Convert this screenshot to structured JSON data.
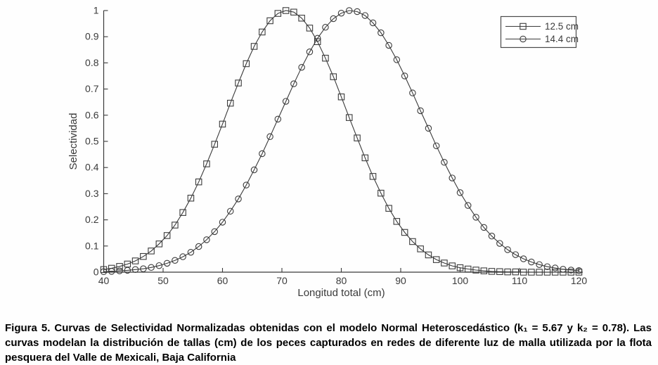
{
  "figure": {
    "caption": "Figura 5. Curvas de Selectividad Normalizadas obtenidas con el modelo Normal Heteroscedástico (k₁ = 5.67 y k₂ = 0.78). Las curvas modelan la distribución de tallas (cm) de los peces capturados en redes de diferente luz de malla utilizada por la flota pesquera del Valle de Mexicali, Baja California"
  },
  "colors": {
    "curve": "#3a3a3a",
    "axis": "#3a3a3a",
    "tick_text": "#3a3a3a",
    "legend_border": "#4a4a4a",
    "background": "#fefefe"
  },
  "chart_data": {
    "type": "line",
    "title": "",
    "xlabel": "Longitud total (cm)",
    "ylabel": "Selectividad",
    "xlim": [
      40,
      120
    ],
    "ylim": [
      0,
      1
    ],
    "x_ticks": [
      40,
      50,
      60,
      70,
      80,
      90,
      100,
      110,
      120
    ],
    "y_ticks": [
      0,
      0.1,
      0.2,
      0.3,
      0.4,
      0.5,
      0.6,
      0.7,
      0.8,
      0.9,
      1
    ],
    "grid": false,
    "legend_position": "top-right",
    "x": [
      40,
      41.33,
      42.67,
      44,
      45.33,
      46.67,
      48,
      49.33,
      50.67,
      52,
      53.33,
      54.67,
      56,
      57.33,
      58.67,
      60,
      61.33,
      62.67,
      64,
      65.33,
      66.67,
      68,
      69.33,
      70.67,
      72,
      73.33,
      74.67,
      76,
      77.33,
      78.67,
      80,
      81.33,
      82.67,
      84,
      85.33,
      86.67,
      88,
      89.33,
      90.67,
      92,
      93.33,
      94.67,
      96,
      97.33,
      98.67,
      100,
      101.33,
      102.67,
      104,
      105.33,
      106.67,
      108,
      109.33,
      110.67,
      112,
      113.33,
      114.67,
      116,
      117.33,
      118.67,
      120
    ],
    "series": [
      {
        "name": "12.5 cm",
        "marker": "square",
        "peak_at": 70.9,
        "values": [
          0.01,
          0.015,
          0.022,
          0.031,
          0.043,
          0.06,
          0.081,
          0.108,
          0.14,
          0.18,
          0.228,
          0.283,
          0.345,
          0.414,
          0.489,
          0.566,
          0.646,
          0.723,
          0.797,
          0.863,
          0.918,
          0.961,
          0.989,
          1.0,
          0.994,
          0.971,
          0.933,
          0.881,
          0.818,
          0.747,
          0.67,
          0.591,
          0.513,
          0.437,
          0.366,
          0.302,
          0.244,
          0.194,
          0.152,
          0.117,
          0.089,
          0.066,
          0.048,
          0.035,
          0.024,
          0.017,
          0.012,
          0.008,
          0.005,
          0.003,
          0.002,
          0.001,
          0.001,
          0.0,
          0.0,
          0.0,
          0.0,
          0.0,
          0.0,
          0.0,
          0.0
        ]
      },
      {
        "name": "14.4 cm",
        "marker": "circle",
        "peak_at": 81.6,
        "values": [
          0.002,
          0.003,
          0.005,
          0.007,
          0.01,
          0.013,
          0.018,
          0.025,
          0.034,
          0.045,
          0.059,
          0.076,
          0.098,
          0.124,
          0.155,
          0.191,
          0.233,
          0.28,
          0.333,
          0.391,
          0.453,
          0.518,
          0.585,
          0.653,
          0.72,
          0.783,
          0.842,
          0.894,
          0.936,
          0.969,
          0.99,
          1.0,
          0.996,
          0.981,
          0.953,
          0.915,
          0.867,
          0.812,
          0.75,
          0.685,
          0.617,
          0.55,
          0.483,
          0.42,
          0.36,
          0.304,
          0.255,
          0.21,
          0.171,
          0.138,
          0.11,
          0.086,
          0.067,
          0.051,
          0.039,
          0.029,
          0.021,
          0.016,
          0.011,
          0.008,
          0.006
        ]
      }
    ]
  }
}
